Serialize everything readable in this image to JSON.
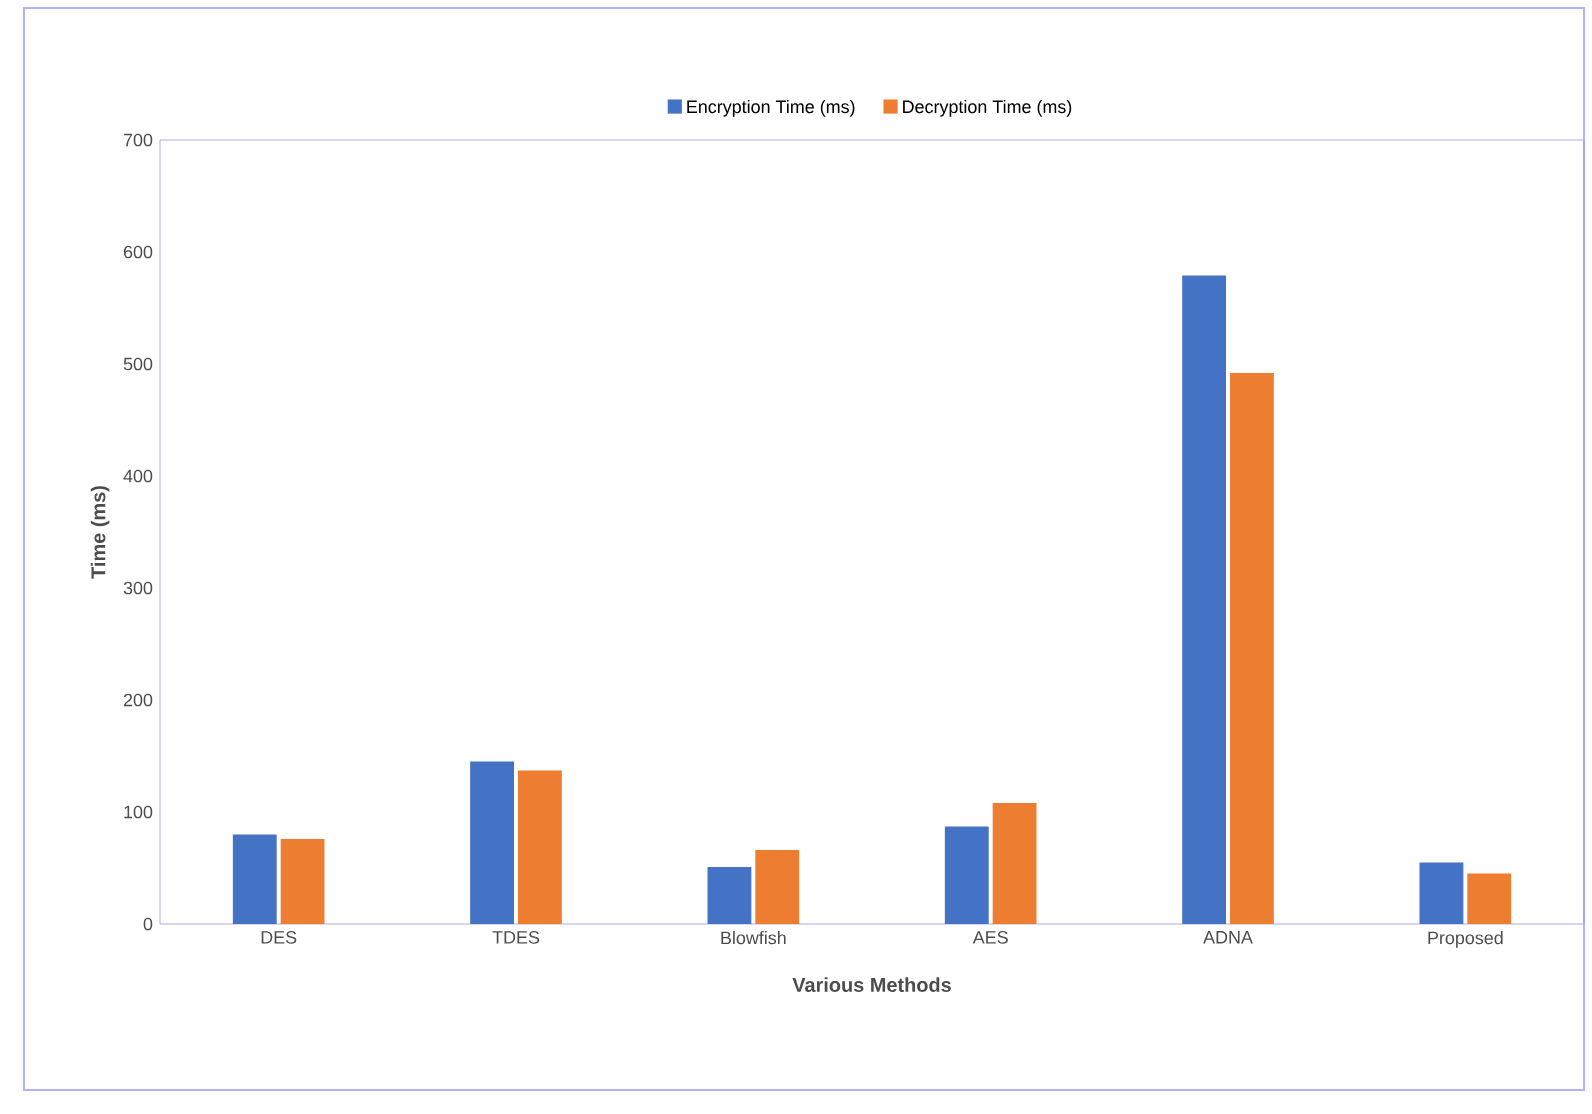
{
  "chart_data": {
    "type": "bar",
    "xlabel": "Various Methods",
    "ylabel": "Time  (ms)",
    "categories": [
      "DES",
      "TDES",
      "Blowfish",
      "AES",
      "ADNA",
      "Proposed"
    ],
    "series": [
      {
        "name": "Encryption Time (ms)",
        "color": "#4472c4",
        "values": [
          80,
          145,
          51,
          87,
          579,
          55
        ]
      },
      {
        "name": "Decryption Time (ms)",
        "color": "#ed7d31",
        "values": [
          76,
          137,
          66,
          108,
          492,
          45
        ]
      }
    ],
    "ylim": [
      0,
      700
    ],
    "yticks": [
      0,
      100,
      200,
      300,
      400,
      500,
      600,
      700
    ],
    "grid": false,
    "legend": "top"
  }
}
